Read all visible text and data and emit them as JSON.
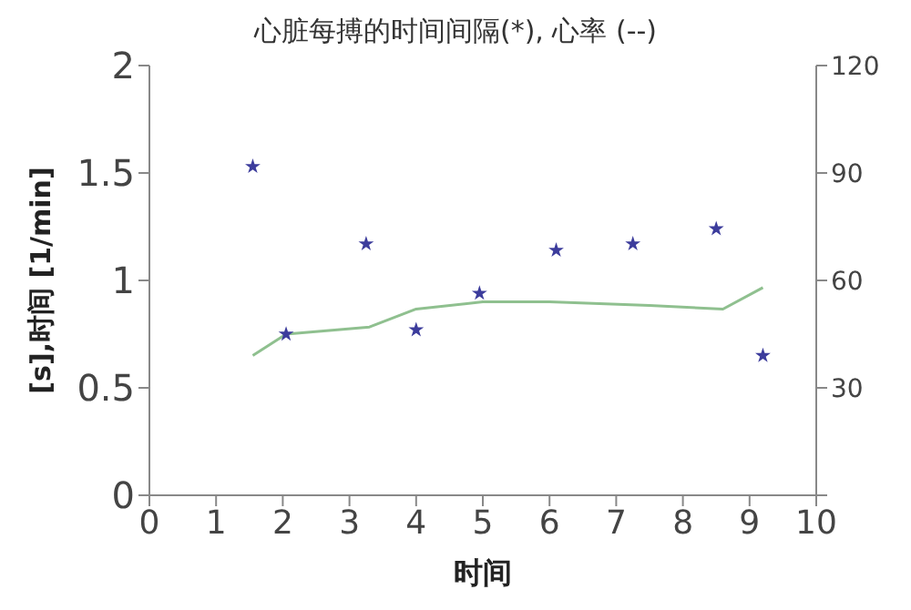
{
  "chart_data": {
    "type": "scatter",
    "title": "心脏每搏的时间间隔(*), 心率 (--)",
    "xlabel": "时间",
    "ylabel": "[s],时间 [1/min]",
    "xlim": [
      0,
      10
    ],
    "xticks": [
      0,
      1,
      2,
      3,
      4,
      5,
      6,
      7,
      8,
      9,
      10
    ],
    "ylim": [
      0,
      2
    ],
    "yticks": [
      0,
      0.5,
      1,
      1.5,
      2
    ],
    "y2lim": [
      0,
      120
    ],
    "y2ticks": [
      {
        "value": 0,
        "label": null
      },
      30,
      60,
      90,
      120
    ],
    "grid": false,
    "legend": false,
    "series": [
      {
        "marker": "star",
        "color": "#3c3c9c",
        "x": [
          1.55,
          2.05,
          3.25,
          4.0,
          4.95,
          6.1,
          7.25,
          8.5,
          9.2
        ],
        "values": [
          1.53,
          0.75,
          1.17,
          0.77,
          0.94,
          1.14,
          1.17,
          1.24,
          0.65
        ]
      },
      {
        "type": "line",
        "axis": "y2",
        "color": "#8fc08f",
        "line_style": "solid",
        "x": [
          1.55,
          2.05,
          3.3,
          4.0,
          5.0,
          6.0,
          7.5,
          8.6,
          9.2
        ],
        "values": [
          39,
          45,
          47,
          52,
          54,
          54,
          53,
          52,
          58
        ]
      }
    ]
  }
}
